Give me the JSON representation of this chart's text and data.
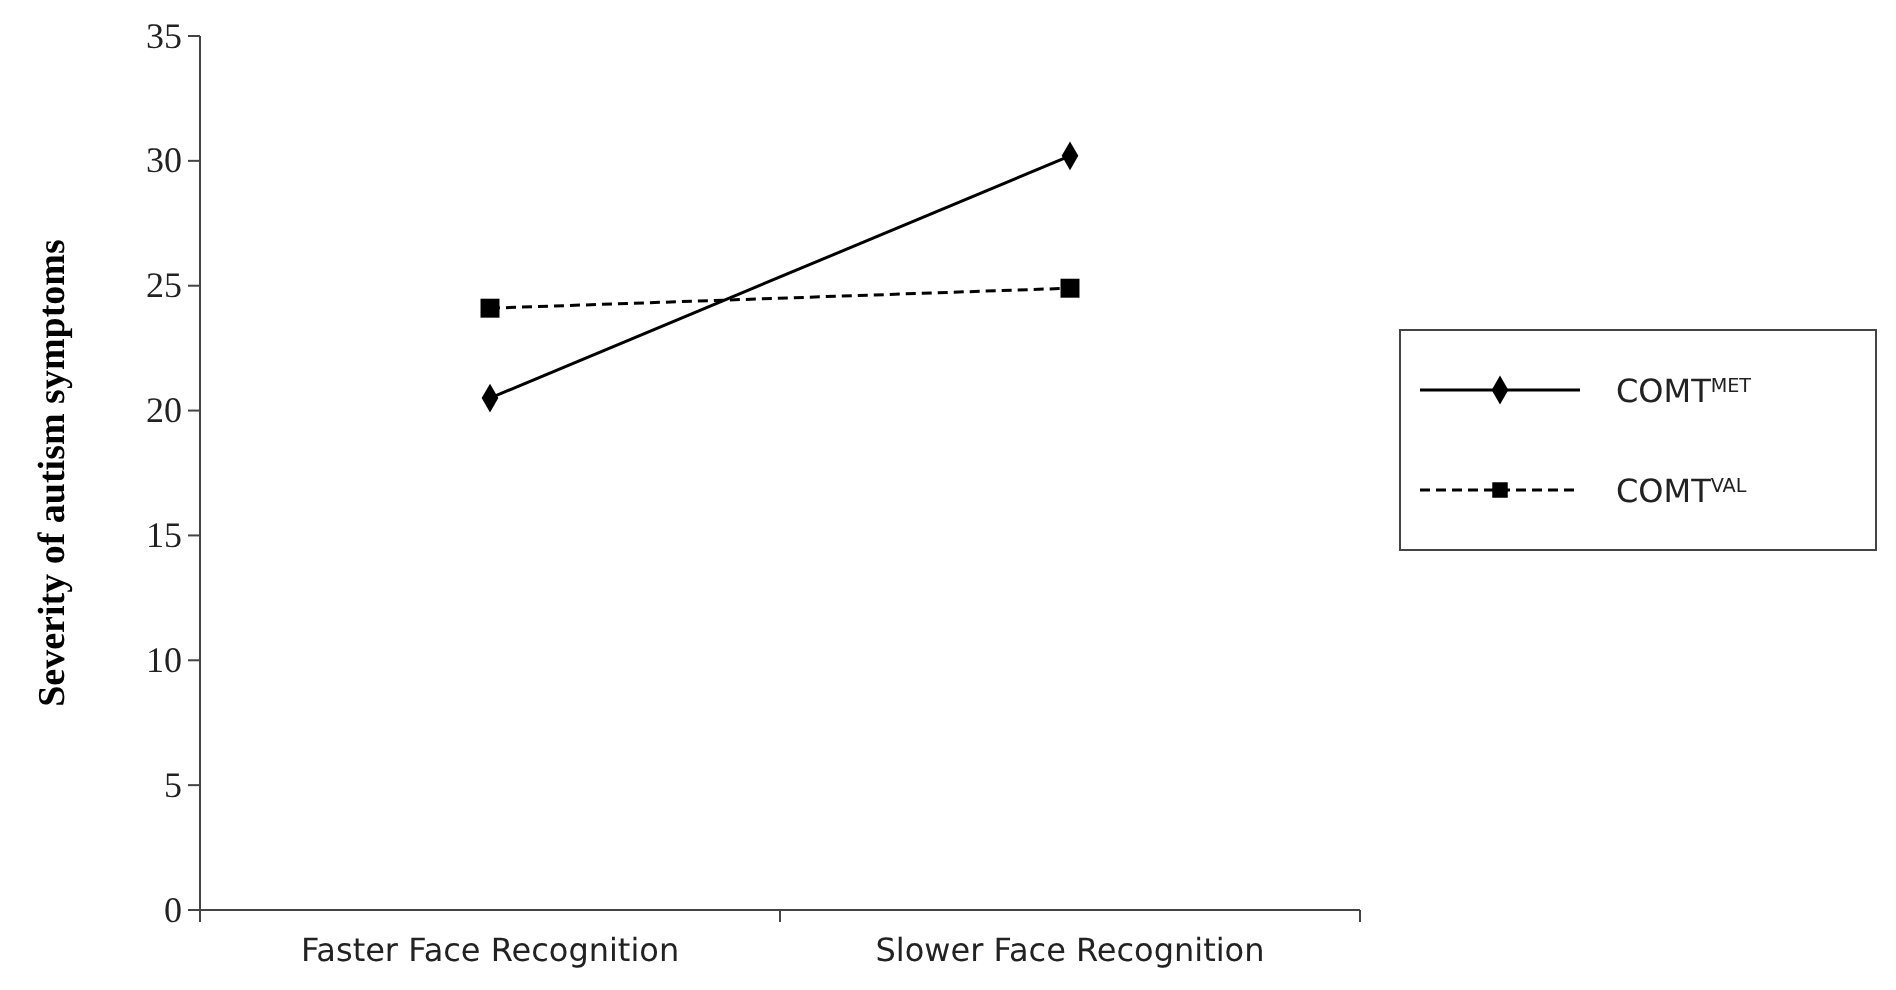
{
  "chart_data": {
    "type": "line",
    "ylabel": "Severity of autism symptoms",
    "categories": [
      "Faster Face Recognition",
      "Slower Face Recognition"
    ],
    "series": [
      {
        "name": "COMT$^{MET}$",
        "color": "#000000",
        "values": [
          20.5,
          30.2
        ],
        "marker": "diamond",
        "line_style": "solid"
      },
      {
        "name": "COMT$^{VAL}$",
        "color": "#000000",
        "values": [
          24.1,
          24.9
        ],
        "marker": "square",
        "line_style": "dashed"
      }
    ],
    "ylim": [
      0,
      35
    ],
    "yticks": [
      0,
      5,
      10,
      15,
      20,
      25,
      30,
      35
    ],
    "grid": false,
    "legend": "right"
  }
}
